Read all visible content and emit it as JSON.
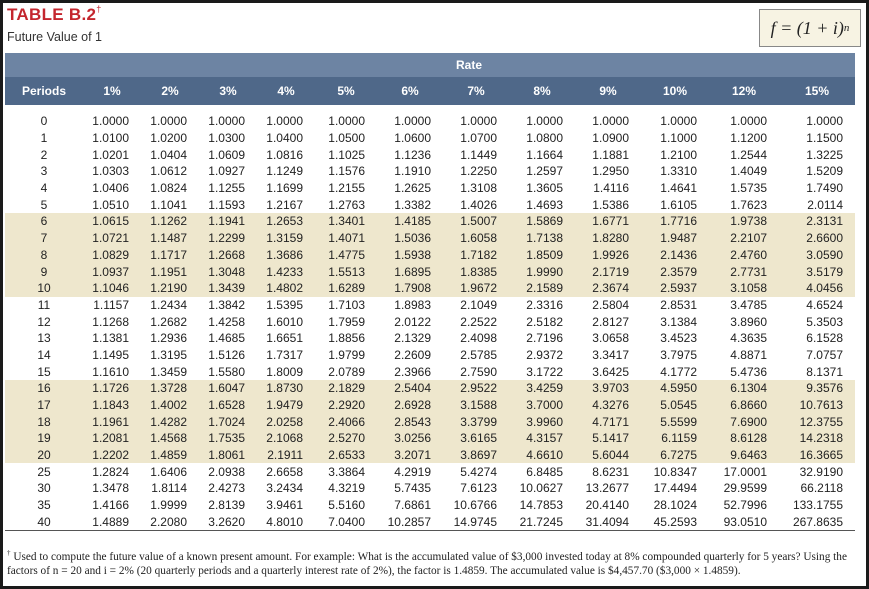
{
  "header": {
    "title": "TABLE B.2",
    "title_mark": "†",
    "subtitle": "Future Value of 1",
    "formula": "f = (1 + i)",
    "formula_exponent": "n"
  },
  "table": {
    "rate_label": "Rate",
    "columns": [
      "Periods",
      "1%",
      "2%",
      "3%",
      "4%",
      "5%",
      "6%",
      "7%",
      "8%",
      "9%",
      "10%",
      "12%",
      "15%"
    ],
    "rows": [
      [
        "0",
        "1.0000",
        "1.0000",
        "1.0000",
        "1.0000",
        "1.0000",
        "1.0000",
        "1.0000",
        "1.0000",
        "1.0000",
        "1.0000",
        "1.0000",
        "1.0000"
      ],
      [
        "1",
        "1.0100",
        "1.0200",
        "1.0300",
        "1.0400",
        "1.0500",
        "1.0600",
        "1.0700",
        "1.0800",
        "1.0900",
        "1.1000",
        "1.1200",
        "1.1500"
      ],
      [
        "2",
        "1.0201",
        "1.0404",
        "1.0609",
        "1.0816",
        "1.1025",
        "1.1236",
        "1.1449",
        "1.1664",
        "1.1881",
        "1.2100",
        "1.2544",
        "1.3225"
      ],
      [
        "3",
        "1.0303",
        "1.0612",
        "1.0927",
        "1.1249",
        "1.1576",
        "1.1910",
        "1.2250",
        "1.2597",
        "1.2950",
        "1.3310",
        "1.4049",
        "1.5209"
      ],
      [
        "4",
        "1.0406",
        "1.0824",
        "1.1255",
        "1.1699",
        "1.2155",
        "1.2625",
        "1.3108",
        "1.3605",
        "1.4116",
        "1.4641",
        "1.5735",
        "1.7490"
      ],
      [
        "5",
        "1.0510",
        "1.1041",
        "1.1593",
        "1.2167",
        "1.2763",
        "1.3382",
        "1.4026",
        "1.4693",
        "1.5386",
        "1.6105",
        "1.7623",
        "2.0114"
      ],
      [
        "6",
        "1.0615",
        "1.1262",
        "1.1941",
        "1.2653",
        "1.3401",
        "1.4185",
        "1.5007",
        "1.5869",
        "1.6771",
        "1.7716",
        "1.9738",
        "2.3131"
      ],
      [
        "7",
        "1.0721",
        "1.1487",
        "1.2299",
        "1.3159",
        "1.4071",
        "1.5036",
        "1.6058",
        "1.7138",
        "1.8280",
        "1.9487",
        "2.2107",
        "2.6600"
      ],
      [
        "8",
        "1.0829",
        "1.1717",
        "1.2668",
        "1.3686",
        "1.4775",
        "1.5938",
        "1.7182",
        "1.8509",
        "1.9926",
        "2.1436",
        "2.4760",
        "3.0590"
      ],
      [
        "9",
        "1.0937",
        "1.1951",
        "1.3048",
        "1.4233",
        "1.5513",
        "1.6895",
        "1.8385",
        "1.9990",
        "2.1719",
        "2.3579",
        "2.7731",
        "3.5179"
      ],
      [
        "10",
        "1.1046",
        "1.2190",
        "1.3439",
        "1.4802",
        "1.6289",
        "1.7908",
        "1.9672",
        "2.1589",
        "2.3674",
        "2.5937",
        "3.1058",
        "4.0456"
      ],
      [
        "11",
        "1.1157",
        "1.2434",
        "1.3842",
        "1.5395",
        "1.7103",
        "1.8983",
        "2.1049",
        "2.3316",
        "2.5804",
        "2.8531",
        "3.4785",
        "4.6524"
      ],
      [
        "12",
        "1.1268",
        "1.2682",
        "1.4258",
        "1.6010",
        "1.7959",
        "2.0122",
        "2.2522",
        "2.5182",
        "2.8127",
        "3.1384",
        "3.8960",
        "5.3503"
      ],
      [
        "13",
        "1.1381",
        "1.2936",
        "1.4685",
        "1.6651",
        "1.8856",
        "2.1329",
        "2.4098",
        "2.7196",
        "3.0658",
        "3.4523",
        "4.3635",
        "6.1528"
      ],
      [
        "14",
        "1.1495",
        "1.3195",
        "1.5126",
        "1.7317",
        "1.9799",
        "2.2609",
        "2.5785",
        "2.9372",
        "3.3417",
        "3.7975",
        "4.8871",
        "7.0757"
      ],
      [
        "15",
        "1.1610",
        "1.3459",
        "1.5580",
        "1.8009",
        "2.0789",
        "2.3966",
        "2.7590",
        "3.1722",
        "3.6425",
        "4.1772",
        "5.4736",
        "8.1371"
      ],
      [
        "16",
        "1.1726",
        "1.3728",
        "1.6047",
        "1.8730",
        "2.1829",
        "2.5404",
        "2.9522",
        "3.4259",
        "3.9703",
        "4.5950",
        "6.1304",
        "9.3576"
      ],
      [
        "17",
        "1.1843",
        "1.4002",
        "1.6528",
        "1.9479",
        "2.2920",
        "2.6928",
        "3.1588",
        "3.7000",
        "4.3276",
        "5.0545",
        "6.8660",
        "10.7613"
      ],
      [
        "18",
        "1.1961",
        "1.4282",
        "1.7024",
        "2.0258",
        "2.4066",
        "2.8543",
        "3.3799",
        "3.9960",
        "4.7171",
        "5.5599",
        "7.6900",
        "12.3755"
      ],
      [
        "19",
        "1.2081",
        "1.4568",
        "1.7535",
        "2.1068",
        "2.5270",
        "3.0256",
        "3.6165",
        "4.3157",
        "5.1417",
        "6.1159",
        "8.6128",
        "14.2318"
      ],
      [
        "20",
        "1.2202",
        "1.4859",
        "1.8061",
        "2.1911",
        "2.6533",
        "3.2071",
        "3.8697",
        "4.6610",
        "5.6044",
        "6.7275",
        "9.6463",
        "16.3665"
      ],
      [
        "25",
        "1.2824",
        "1.6406",
        "2.0938",
        "2.6658",
        "3.3864",
        "4.2919",
        "5.4274",
        "6.8485",
        "8.6231",
        "10.8347",
        "17.0001",
        "32.9190"
      ],
      [
        "30",
        "1.3478",
        "1.8114",
        "2.4273",
        "3.2434",
        "4.3219",
        "5.7435",
        "7.6123",
        "10.0627",
        "13.2677",
        "17.4494",
        "29.9599",
        "66.2118"
      ],
      [
        "35",
        "1.4166",
        "1.9999",
        "2.8139",
        "3.9461",
        "5.5160",
        "7.6861",
        "10.6766",
        "14.7853",
        "20.4140",
        "28.1024",
        "52.7996",
        "133.1755"
      ],
      [
        "40",
        "1.4889",
        "2.2080",
        "3.2620",
        "4.8010",
        "7.0400",
        "10.2857",
        "14.9745",
        "21.7245",
        "31.4094",
        "45.2593",
        "93.0510",
        "267.8635"
      ]
    ]
  },
  "footnote": {
    "mark": "†",
    "text": "Used to compute the future value of a known present amount. For example: What is the accumulated value of $3,000 invested today at 8% compounded quarterly for 5 years? Using the factors of n = 20 and i = 2% (20 quarterly periods and a quarterly interest rate of 2%), the factor is 1.4859. The accumulated value is $4,457.70 ($3,000 × 1.4859)."
  }
}
